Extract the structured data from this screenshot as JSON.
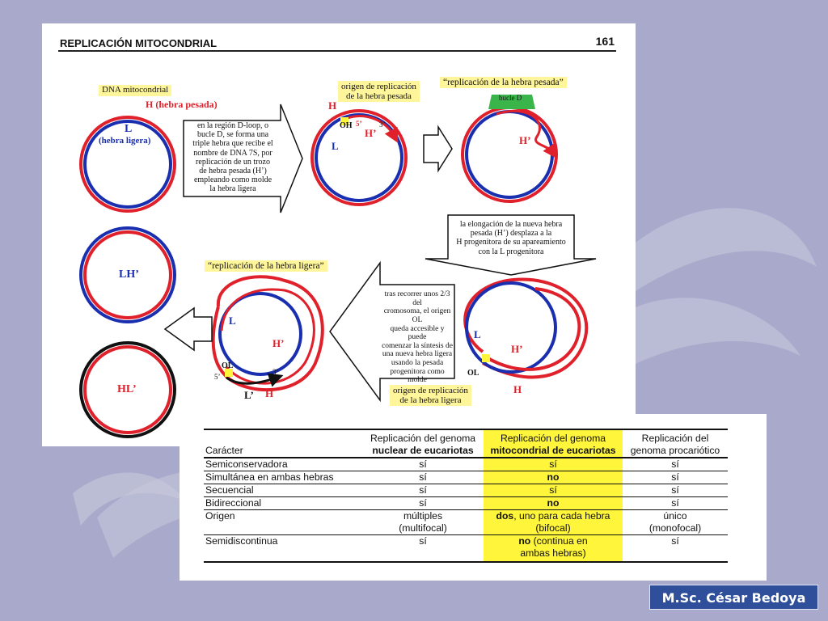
{
  "document": {
    "title": "REPLICACIÓN MITOCONDRIAL",
    "page_number": "161"
  },
  "diagram": {
    "dna_label": "DNA mitocondrial",
    "h_strand": "H (hebra pesada)",
    "l_strand_letter": "L",
    "l_strand_name": "(hebra ligera)",
    "box1_lines": [
      "en la región D-loop, o",
      "bucle D, se forma una",
      "triple hebra que recibe el",
      "nombre de DNA 7S, por",
      "replicación de un trozo",
      "de hebra pesada (H’)",
      "empleando como molde",
      "la hebra ligera"
    ],
    "origin_heavy_line1": "origen de replicación",
    "origin_heavy_line2": "de la hebra pesada",
    "oh_label": "OH",
    "five_prime": "5’",
    "three_prime": "3’",
    "h_letter": "H",
    "l_letter": "L",
    "h_prime": "H’",
    "heavy_replication": "“replicación de la hebra pesada”",
    "dloop_label": "bucle D",
    "box2_line1": "la elongación de la nueva hebra",
    "box2_line2": "pesada (H’) desplaza a la",
    "box2_line3": "H progenitora de su apareamiento",
    "box2_line4": "con la L progenitora",
    "lh_label": "LH’",
    "hl_label": "HL’",
    "light_replication": "“replicación de la hebra ligera”",
    "ol_label": "OL",
    "l_prime": "L’",
    "box3_lines": [
      "tras recorrer unos 2/3 del",
      "cromosoma, el origen OL",
      "queda accesible y puede",
      "comenzar la síntesis de",
      "una nueva hebra ligera",
      "usando la pesada",
      "progenitora como molde"
    ],
    "origin_light_line1": "origen de replicación",
    "origin_light_line2": "de la hebra ligera"
  },
  "table": {
    "headers": [
      [
        "Carácter"
      ],
      [
        "Replicación del genoma",
        "nuclear de eucariotas"
      ],
      [
        "Replicación del genoma",
        "mitocondrial de eucariotas"
      ],
      [
        "Replicación del",
        "genoma procariótico"
      ]
    ],
    "rows": [
      {
        "c0": "Semiconservadora",
        "c1": "sí",
        "c2": "sí",
        "c3": "sí"
      },
      {
        "c0": "Simultánea en ambas hebras",
        "c1": "sí",
        "c2": "no",
        "c3": "sí"
      },
      {
        "c0": "Secuencial",
        "c1": "sí",
        "c2": "sí",
        "c3": "sí"
      },
      {
        "c0": "Bidireccional",
        "c1": "sí",
        "c2": "no",
        "c3": "sí"
      },
      {
        "c0": "Origen",
        "c1a": "múltiples",
        "c1b": "(multifocal)",
        "c2a": "dos, uno para cada hebra",
        "c2b": "(bifocal)",
        "c3a": "único",
        "c3b": "(monofocal)"
      },
      {
        "c0": "Semidiscontinua",
        "c1": "sí",
        "c2a": "no (continua en",
        "c2b": "ambas hebras)",
        "c3": "sí"
      }
    ]
  },
  "footer": {
    "author": "M.Sc. César Bedoya"
  },
  "colors": {
    "background": "#a9aacb",
    "highlight": "#fff53a",
    "heavy_strand": "#e0202a",
    "light_strand": "#1a2fb0",
    "author_badge": "#2f4f9a"
  }
}
